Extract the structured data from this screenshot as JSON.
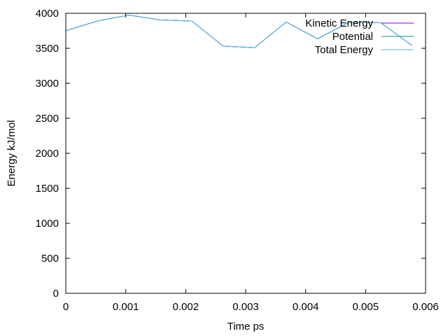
{
  "chart_data": {
    "type": "line",
    "xlabel": "Time  ps",
    "ylabel": "Energy kJ/mol",
    "xlim": [
      0,
      0.006
    ],
    "ylim": [
      0,
      4000
    ],
    "xticks": [
      0,
      0.001,
      0.002,
      0.003,
      0.004,
      0.005,
      0.006
    ],
    "xtick_labels": [
      "0",
      "0.001",
      "0.002",
      "0.003",
      "0.004",
      "0.005",
      "0.006"
    ],
    "yticks": [
      0,
      500,
      1000,
      1500,
      2000,
      2500,
      3000,
      3500,
      4000
    ],
    "ytick_labels": [
      "0",
      "500",
      "1000",
      "1500",
      "2000",
      "2500",
      "3000",
      "3500",
      "4000"
    ],
    "grid": false,
    "legend_position": "top-right",
    "series": [
      {
        "name": "Kinetic Energy",
        "color": "#9400d3",
        "x": [
          0,
          0.000525,
          0.00105,
          0.001575,
          0.0021,
          0.002625,
          0.00315,
          0.003675,
          0.0042,
          0.004725,
          0.00525,
          0.005775
        ],
        "y": [
          3750,
          3890,
          3975,
          3905,
          3890,
          3530,
          3510,
          3875,
          3635,
          3875,
          3865,
          3540
        ]
      },
      {
        "name": "Potential",
        "color": "#009e73",
        "x": [
          0,
          0.000525,
          0.00105,
          0.001575,
          0.0021,
          0.002625,
          0.00315,
          0.003675,
          0.0042,
          0.004725,
          0.00525,
          0.005775
        ],
        "y": [
          3750,
          3890,
          3975,
          3905,
          3890,
          3530,
          3510,
          3875,
          3635,
          3875,
          3865,
          3540
        ]
      },
      {
        "name": "Total Energy",
        "color": "#56b4e9",
        "x": [
          0,
          0.000525,
          0.00105,
          0.001575,
          0.0021,
          0.002625,
          0.00315,
          0.003675,
          0.0042,
          0.004725,
          0.00525,
          0.005775
        ],
        "y": [
          3750,
          3890,
          3975,
          3905,
          3890,
          3530,
          3510,
          3875,
          3635,
          3875,
          3865,
          3540
        ]
      }
    ]
  }
}
